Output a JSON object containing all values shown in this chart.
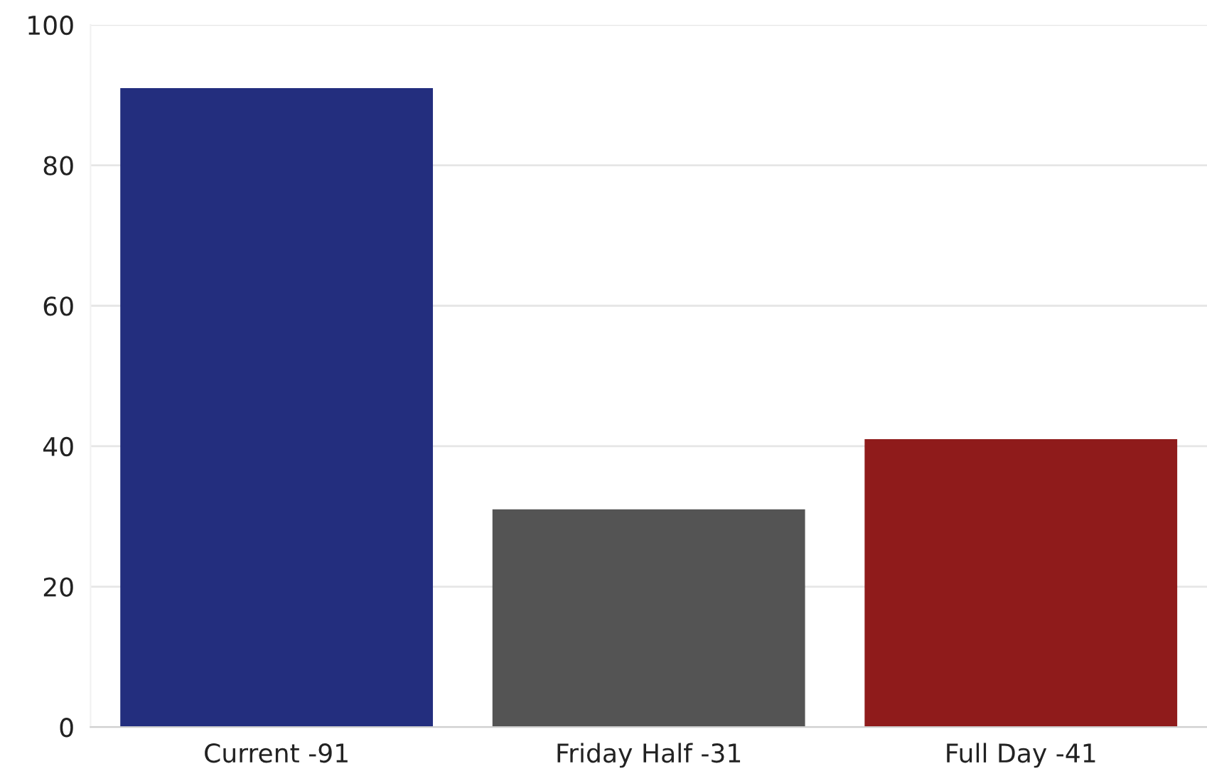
{
  "chart_data": {
    "type": "bar",
    "categories": [
      "Current -91",
      "Friday Half -31",
      "Full Day -41"
    ],
    "values": [
      91,
      31,
      41
    ],
    "colors": [
      "#232e7e",
      "#545454",
      "#8f1b1b"
    ],
    "ylim": [
      0,
      100
    ],
    "yticks": [
      0,
      20,
      40,
      60,
      80,
      100
    ],
    "grid": "y"
  }
}
